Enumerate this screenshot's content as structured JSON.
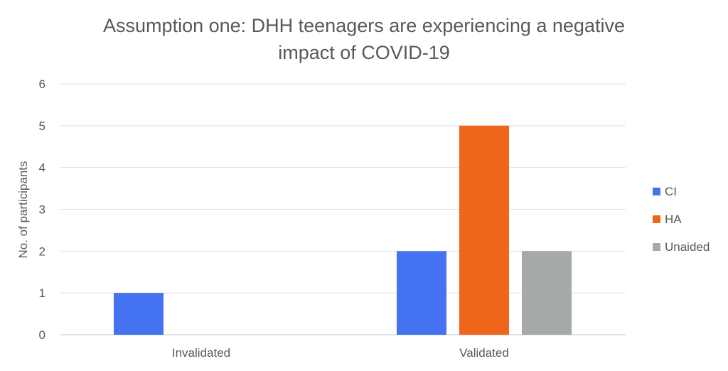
{
  "chart_data": {
    "type": "bar",
    "title_lines": [
      "Assumption one: DHH teenagers are experiencing a negative",
      "impact of COVID-19"
    ],
    "xlabel": "",
    "ylabel": "No. of participants",
    "ylim": [
      0,
      6
    ],
    "yticks": [
      "0",
      "1",
      "2",
      "3",
      "4",
      "5",
      "6"
    ],
    "grid": true,
    "legend_position": "right",
    "categories": [
      "Invalidated",
      "Validated"
    ],
    "series": [
      {
        "name": "CI",
        "color": "#4472f0",
        "values": [
          1,
          2
        ]
      },
      {
        "name": "HA",
        "color": "#f0651c",
        "values": [
          0,
          5
        ]
      },
      {
        "name": "Unaided",
        "color": "#a5a9a8",
        "values": [
          0,
          2
        ]
      }
    ]
  }
}
